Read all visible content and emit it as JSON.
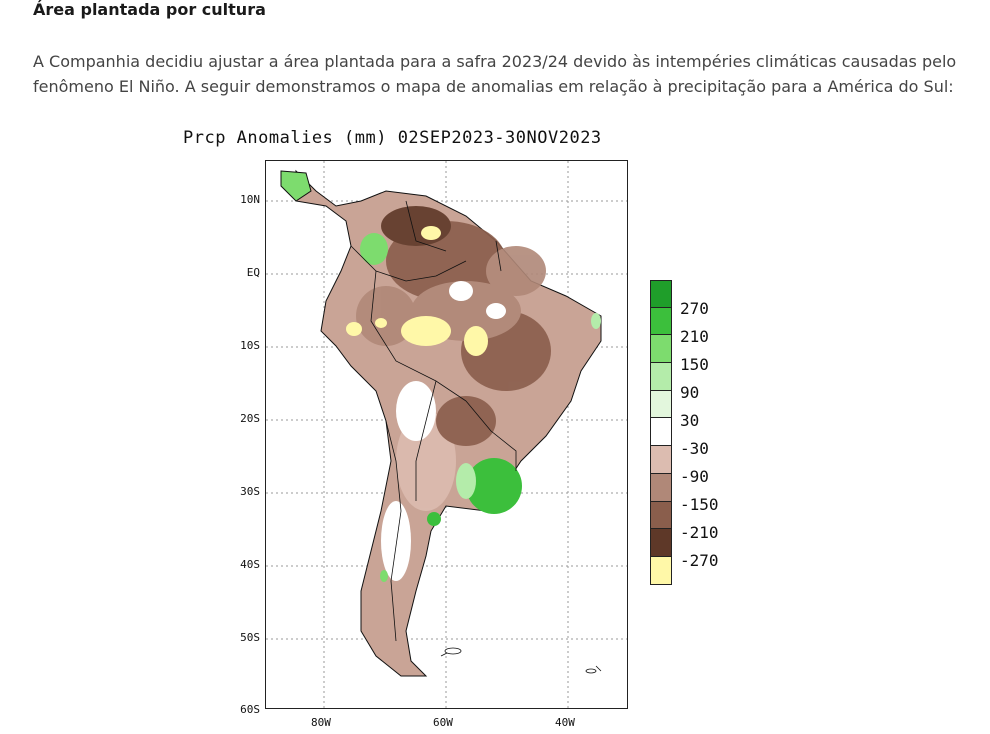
{
  "heading": "Área plantada por cultura",
  "paragraph": "A Companhia decidiu ajustar a área plantada para a safra 2023/24 devido às intempéries climáticas causadas pelo fenômeno El Niño. A seguir demonstramos o mapa de anomalias em relação à precipitação para a América do Sul:",
  "map": {
    "title": "Prcp Anomalies (mm) 02SEP2023-30NOV2023",
    "lat_labels": [
      "10N",
      "EQ",
      "10S",
      "20S",
      "30S",
      "40S",
      "50S",
      "60S"
    ],
    "lon_labels": [
      "80W",
      "60W",
      "40W"
    ],
    "legend": {
      "labels": [
        "270",
        "210",
        "150",
        "90",
        "30",
        "-30",
        "-90",
        "-150",
        "-210",
        "-270"
      ],
      "colors": [
        "#1f9e2a",
        "#3cbf3c",
        "#7ddc6e",
        "#b4ecaa",
        "#e3f7dd",
        "#ffffff",
        "#dcbcb0",
        "#b08878",
        "#8a5e4c",
        "#5e3828",
        "#fff8a8"
      ]
    }
  }
}
